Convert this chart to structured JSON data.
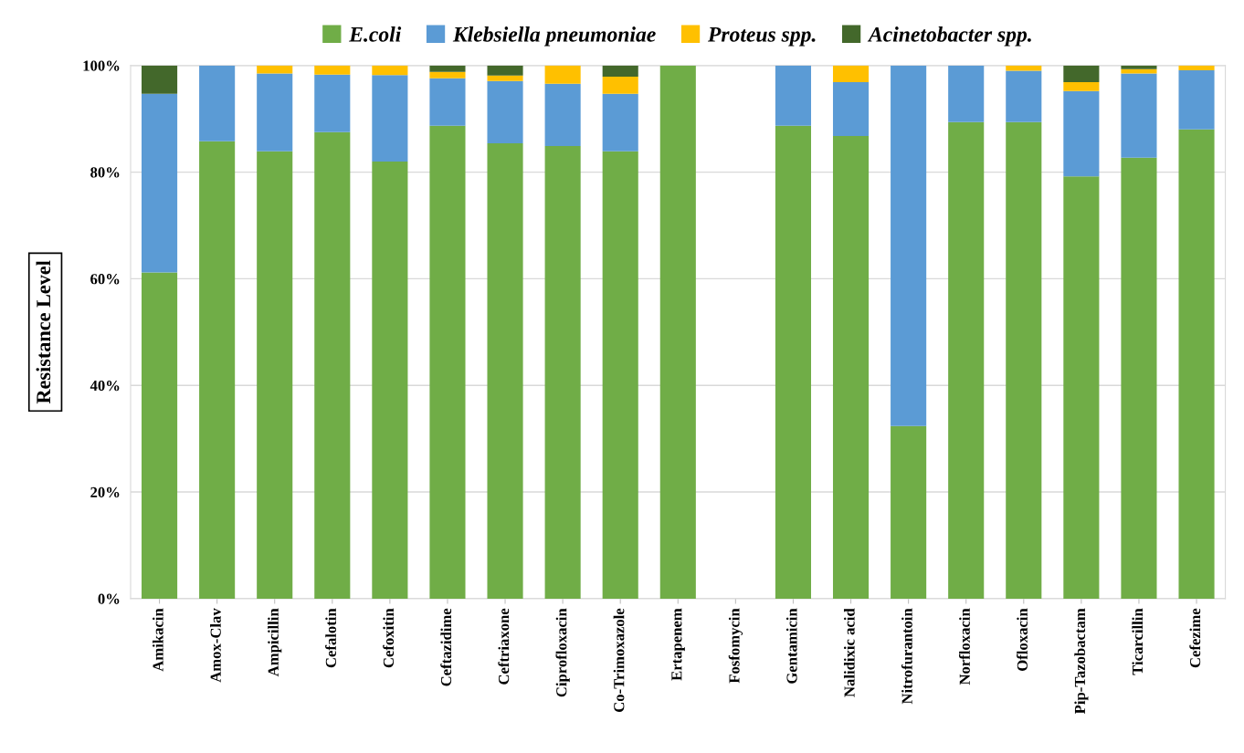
{
  "chart_data": {
    "type": "bar",
    "stacked": true,
    "ylabel": "Resistance Level",
    "categories": [
      "Amikacin",
      "Amox-Clav",
      "Ampicillin",
      "Cefalotin",
      "Cefoxitin",
      "Ceftazidime",
      "Ceftriaxone",
      "Ciprofloxacin",
      "Co-Trimoxazole",
      "Ertapenem",
      "Fosfomycin",
      "Gentamicin",
      "Nalidixic acid",
      "Nitrofurantoin",
      "Norfloxacin",
      "Ofloxacin",
      "Pip-Tazobactam",
      "Ticarcillin",
      "Cefezime"
    ],
    "series": [
      {
        "name": "E.coli",
        "color": "#70ad47",
        "values": [
          61.2,
          85.8,
          83.9,
          87.5,
          82.0,
          88.7,
          85.4,
          84.9,
          83.9,
          100,
          0,
          88.7,
          86.8,
          32.4,
          89.4,
          89.4,
          79.2,
          82.7,
          88.0
        ]
      },
      {
        "name": "Klebsiella pneumoniae",
        "color": "#5b9bd5",
        "values": [
          33.5,
          14.2,
          14.6,
          10.8,
          16.2,
          8.9,
          11.7,
          11.7,
          10.8,
          0,
          0,
          11.3,
          10.1,
          67.6,
          10.6,
          9.6,
          16.0,
          15.8,
          11.1
        ]
      },
      {
        "name": "Proteus spp.",
        "color": "#ffc000",
        "values": [
          0,
          0,
          1.5,
          1.7,
          1.8,
          1.2,
          1.0,
          3.4,
          3.2,
          0,
          0,
          0,
          3.1,
          0,
          0,
          1.0,
          1.7,
          0.8,
          0.9
        ]
      },
      {
        "name": "Acinetobacter spp.",
        "color": "#43682b",
        "values": [
          5.3,
          0,
          0,
          0,
          0,
          1.2,
          1.9,
          0,
          2.1,
          0,
          0,
          0,
          0,
          0,
          0,
          0,
          3.1,
          0.7,
          0
        ]
      }
    ],
    "ylim": [
      0,
      100
    ],
    "yticks": [
      {
        "value": 0,
        "label": "0%"
      },
      {
        "value": 20,
        "label": "20%"
      },
      {
        "value": 40,
        "label": "40%"
      },
      {
        "value": 60,
        "label": "60%"
      },
      {
        "value": 80,
        "label": "80%"
      },
      {
        "value": 100,
        "label": "100%"
      }
    ],
    "grid": "y",
    "legend": "top"
  }
}
